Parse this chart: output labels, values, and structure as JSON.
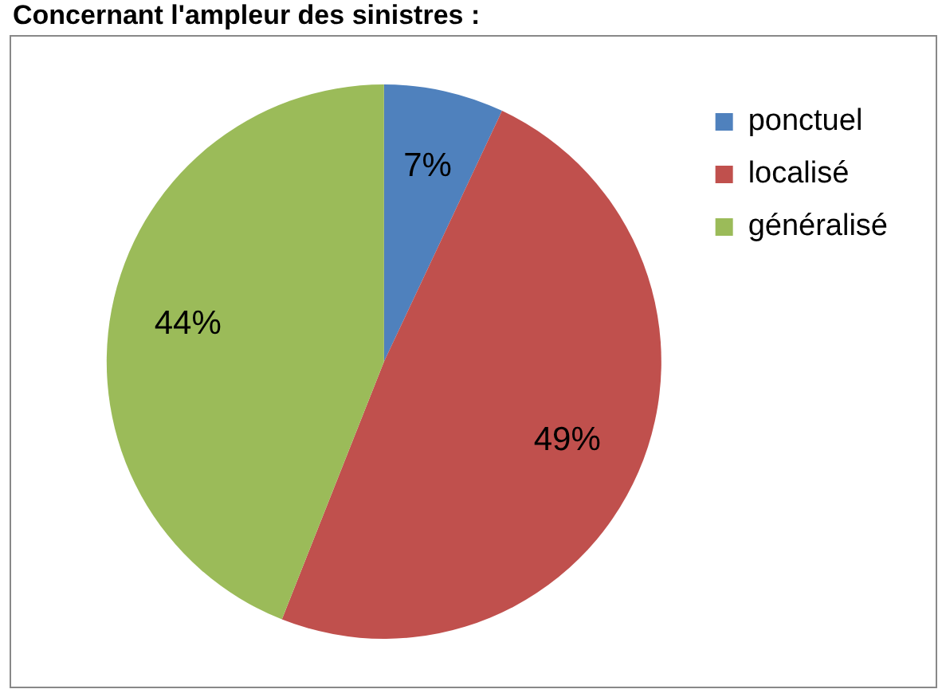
{
  "chart_data": {
    "type": "pie",
    "title": "Concernant l'ampleur des sinistres :",
    "categories": [
      "ponctuel",
      "localisé",
      "généralisé"
    ],
    "values": [
      7,
      49,
      44
    ],
    "colors": [
      "#4f81bd",
      "#c0504d",
      "#9bbb59"
    ],
    "value_labels": [
      "7%",
      "49%",
      "44%"
    ],
    "legend": "top right"
  }
}
